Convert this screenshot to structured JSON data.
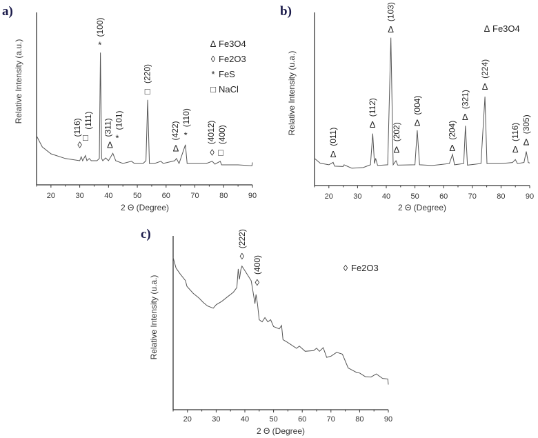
{
  "chart_data": [
    {
      "type": "line",
      "panel_label": "a)",
      "xlabel": "2 Θ (Degree)",
      "ylabel": "Relative Intensity (a.u.)",
      "xlim": [
        15,
        90
      ],
      "ylim": [
        0,
        100
      ],
      "xticks": [
        20,
        30,
        40,
        50,
        60,
        70,
        80,
        90
      ],
      "grid": false,
      "legend_position": "top-right",
      "legend": [
        {
          "symbol": "Δ",
          "label": "Fe3O4"
        },
        {
          "symbol": "◊",
          "label": "Fe2O3"
        },
        {
          "symbol": "*",
          "label": "FeS"
        },
        {
          "symbol": "□",
          "label": "NaCl"
        }
      ],
      "x": [
        15,
        17,
        20,
        25,
        30,
        30.5,
        31,
        32,
        32.5,
        33.3,
        34,
        36,
        36.8,
        37.2,
        37.6,
        38,
        39,
        40,
        41.5,
        42.5,
        45,
        48,
        49,
        52,
        53,
        53.6,
        54.2,
        56,
        58.2,
        59,
        63,
        63.6,
        64.5,
        66.7,
        67.3,
        70,
        74,
        76,
        77,
        78.8,
        79.3,
        85,
        88,
        89.8,
        90
      ],
      "y": [
        28.4,
        22,
        18,
        15.3,
        14,
        16.3,
        14,
        17,
        14,
        15.3,
        14,
        14,
        15.3,
        76.7,
        15.3,
        14,
        15.6,
        14,
        18.3,
        14,
        12.4,
        13.7,
        12.4,
        12.4,
        14,
        49.3,
        12.4,
        12.4,
        13.7,
        12.4,
        14,
        15.3,
        12.4,
        23.3,
        12.4,
        12.4,
        12.4,
        13.7,
        12,
        13.7,
        11.6,
        11.6,
        11.3,
        11,
        13
      ],
      "annotations": [
        {
          "label": "(116)",
          "symbol": "◊",
          "x": 30.0,
          "y": 23
        },
        {
          "label": "(111)",
          "symbol": "□",
          "x": 32.0,
          "y": 27.3
        },
        {
          "label": "(100)",
          "symbol": "*",
          "x": 37.0,
          "y": 81
        },
        {
          "label": "(311)",
          "symbol": "Δ",
          "x": 40.5,
          "y": 23
        },
        {
          "label": "(101)",
          "symbol": "*",
          "x": 43.0,
          "y": 27
        },
        {
          "label": "(220)",
          "symbol": "□",
          "x": 53.5,
          "y": 54
        },
        {
          "label": "(422)",
          "symbol": "Δ",
          "x": 63.4,
          "y": 21
        },
        {
          "label": "(110)",
          "symbol": "*",
          "x": 66.8,
          "y": 28.7
        },
        {
          "label": "(4012)",
          "symbol": "◊",
          "x": 76.0,
          "y": 18.7
        },
        {
          "label": "(400)",
          "symbol": "□",
          "x": 79.0,
          "y": 18.7
        }
      ]
    },
    {
      "type": "line",
      "panel_label": "b)",
      "xlabel": "2 Θ (Degree)",
      "ylabel": "Relative Intensity (u.a.)",
      "xlim": [
        15,
        90
      ],
      "ylim": [
        0,
        100
      ],
      "xticks": [
        20,
        30,
        40,
        50,
        60,
        70,
        80,
        90
      ],
      "grid": false,
      "legend_position": "top-right",
      "legend": [
        {
          "symbol": "Δ",
          "label": "Fe3O4"
        }
      ],
      "x": [
        15,
        17,
        20,
        21.5,
        22,
        25,
        25.3,
        28,
        32,
        34.5,
        35.3,
        35.9,
        36.3,
        37,
        40.5,
        41.6,
        42.4,
        43.4,
        44,
        50,
        50.8,
        51.6,
        56,
        62,
        63.1,
        63.8,
        67,
        67.6,
        68.3,
        73,
        74.4,
        75.1,
        80,
        84,
        85,
        85.7,
        88,
        88.8,
        89.5,
        90
      ],
      "y": [
        15.7,
        12.9,
        12,
        13.4,
        11.2,
        11,
        12,
        10,
        10.4,
        12,
        30,
        12.7,
        15.7,
        11.6,
        12,
        85.4,
        12,
        14.3,
        11.8,
        12,
        31.9,
        12,
        11.6,
        12.7,
        18,
        12,
        12.7,
        34.5,
        11.8,
        12.7,
        51.3,
        12.7,
        12.7,
        13.3,
        15,
        12.7,
        13.3,
        19.7,
        13.3,
        13
      ],
      "annotations": [
        {
          "label": "(011)",
          "symbol": "Δ",
          "x": 21.5,
          "y": 18
        },
        {
          "label": "(112)",
          "symbol": "Δ",
          "x": 35.2,
          "y": 35
        },
        {
          "label": "(103)",
          "symbol": "Δ",
          "x": 41.6,
          "y": 90
        },
        {
          "label": "(202)",
          "symbol": "Δ",
          "x": 43.6,
          "y": 20.6
        },
        {
          "label": "(004)",
          "symbol": "Δ",
          "x": 50.8,
          "y": 36
        },
        {
          "label": "(204)",
          "symbol": "Δ",
          "x": 63.0,
          "y": 21.6
        },
        {
          "label": "(321)",
          "symbol": "Δ",
          "x": 67.5,
          "y": 39.4
        },
        {
          "label": "(224)",
          "symbol": "Δ",
          "x": 74.4,
          "y": 57
        },
        {
          "label": "(116)",
          "symbol": "Δ",
          "x": 85.0,
          "y": 20.7
        },
        {
          "label": "(305)",
          "symbol": "Δ",
          "x": 88.8,
          "y": 25
        }
      ]
    },
    {
      "type": "line",
      "panel_label": "c)",
      "xlabel": "2 Θ (Degree)",
      "ylabel": "Relative Intensity (u.a.)",
      "xlim": [
        15,
        90
      ],
      "ylim": [
        0,
        100
      ],
      "xticks": [
        20,
        30,
        40,
        50,
        60,
        70,
        80,
        90
      ],
      "grid": false,
      "legend_position": "top-right",
      "legend": [
        {
          "symbol": "◊",
          "label": "Fe2O3"
        }
      ],
      "x": [
        15,
        16,
        17.5,
        19.3,
        19.8,
        22,
        24,
        25.5,
        27,
        29,
        30,
        32,
        34,
        36,
        37.2,
        37.7,
        38.1,
        38.6,
        39,
        40,
        41,
        42.2,
        43,
        43.5,
        43.9,
        44.4,
        45,
        46,
        47,
        48,
        49,
        50,
        52,
        52.8,
        53.3,
        55,
        58,
        59,
        61,
        64,
        65,
        66,
        67.3,
        68.5,
        70,
        72,
        74,
        76,
        79,
        80,
        82,
        84,
        85.8,
        88,
        89.8,
        90
      ],
      "y": [
        87.5,
        81.5,
        78,
        74.3,
        71,
        67,
        64.3,
        61.7,
        59.7,
        58.4,
        60.4,
        62.4,
        65,
        67.6,
        70.3,
        81,
        75,
        80.6,
        82.6,
        80,
        77.4,
        74.2,
        66.3,
        61,
        66.3,
        61,
        51.8,
        50.5,
        53,
        50.5,
        51.8,
        47.8,
        46.5,
        48.5,
        40.3,
        38.6,
        35.3,
        36.6,
        33.6,
        34,
        35.4,
        33.6,
        35.7,
        30.1,
        30.8,
        33,
        32,
        24,
        21.4,
        21.1,
        19,
        18.8,
        20.6,
        18,
        17.7,
        14.5
      ],
      "annotations": [
        {
          "label": "(222)",
          "symbol": "◊",
          "x": 39.0,
          "y": 88
        },
        {
          "label": "(400)",
          "symbol": "◊",
          "x": 44.3,
          "y": 73
        }
      ]
    }
  ]
}
